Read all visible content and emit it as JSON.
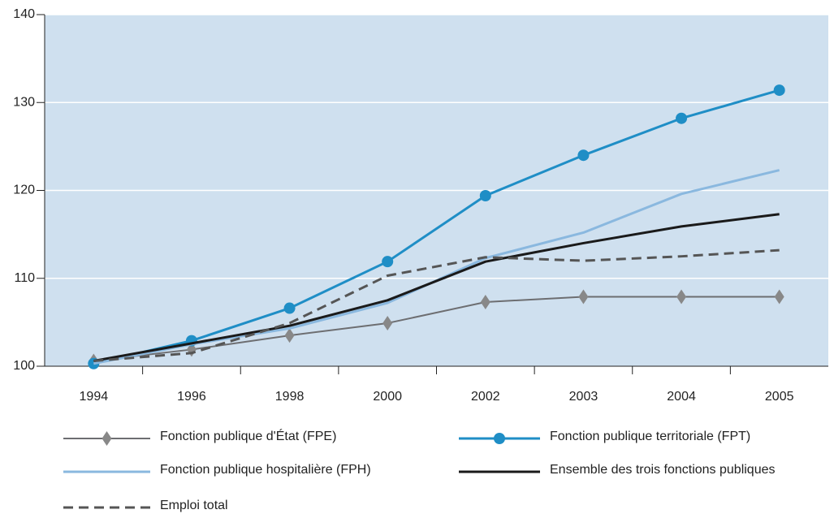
{
  "chart_data": {
    "type": "line",
    "categories": [
      "1994",
      "1996",
      "1998",
      "2000",
      "2002",
      "2003",
      "2004",
      "2005"
    ],
    "series": [
      {
        "name": "Fonction publique d'État (FPE)",
        "color": "#6d6e71",
        "marker": "diamond",
        "width": 2,
        "values": [
          100.6,
          101.9,
          103.5,
          104.9,
          107.3,
          107.9,
          107.9,
          107.9
        ]
      },
      {
        "name": "Fonction publique territoriale (FPT)",
        "color": "#1f8ec6",
        "marker": "circle",
        "width": 3,
        "values": [
          100.3,
          102.9,
          106.6,
          111.9,
          119.4,
          124.0,
          128.2,
          131.4
        ]
      },
      {
        "name": "Fonction publique hospitalière (FPH)",
        "color": "#8ab8df",
        "width": 3,
        "values": [
          100.3,
          102.5,
          104.3,
          107.2,
          112.3,
          115.2,
          119.6,
          122.3
        ]
      },
      {
        "name": "Ensemble des trois fonctions publiques",
        "color": "#1a1a1a",
        "width": 3,
        "values": [
          100.6,
          102.6,
          104.6,
          107.5,
          111.9,
          114.0,
          115.9,
          117.3
        ]
      },
      {
        "name": "Emploi total",
        "color": "#555555",
        "dashed": true,
        "width": 3,
        "values": [
          100.6,
          101.5,
          104.9,
          110.3,
          112.4,
          112.0,
          112.5,
          113.2
        ]
      }
    ],
    "ylim": [
      100,
      140
    ],
    "yticks": [
      100,
      110,
      120,
      130,
      140
    ],
    "grid": true,
    "plot_background": "#cfe0ef"
  }
}
